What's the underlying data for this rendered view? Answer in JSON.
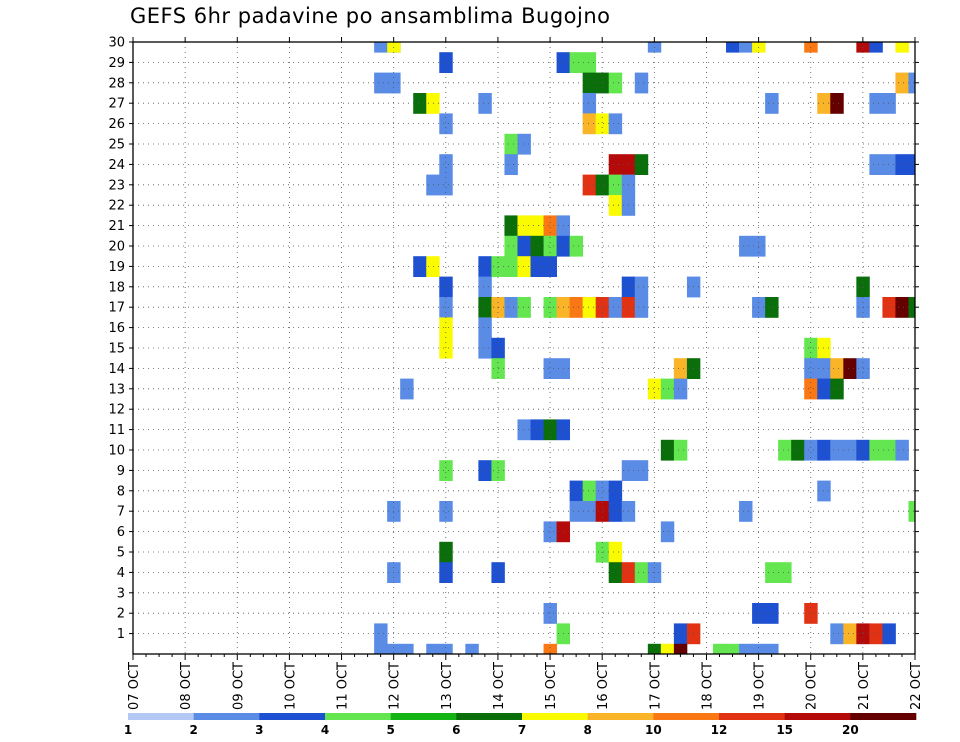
{
  "chart_data": {
    "type": "heatmap",
    "title": "GEFS 6hr padavine po ansamblima Bugojno",
    "xlabel": "",
    "ylabel": "",
    "x_tick_labels": [
      "07 OCT",
      "08 OCT",
      "09 OCT",
      "10 OCT",
      "11 OCT",
      "12 OCT",
      "13 OCT",
      "14 OCT",
      "15 OCT",
      "16 OCT",
      "17 OCT",
      "18 OCT",
      "19 OCT",
      "20 OCT",
      "21 OCT",
      "22 OCT"
    ],
    "y_tick_labels": [
      "1",
      "2",
      "3",
      "4",
      "5",
      "6",
      "7",
      "8",
      "9",
      "10",
      "11",
      "12",
      "13",
      "14",
      "15",
      "16",
      "17",
      "18",
      "19",
      "20",
      "21",
      "22",
      "23",
      "24",
      "25",
      "26",
      "27",
      "28",
      "29",
      "30"
    ],
    "y_range": [
      0,
      30
    ],
    "x_slot": "6-hourly steps starting 07 OCT 00Z (slot 0) to 22 OCT 00Z (slot 60)",
    "grid": true,
    "colorbar": {
      "placement": "bottom",
      "labels": [
        "1",
        "2",
        "3",
        "4",
        "5",
        "6",
        "7",
        "8",
        "10",
        "12",
        "15",
        "20"
      ],
      "colors": [
        "#b4c8f5",
        "#5a8ce6",
        "#1e50d2",
        "#64e650",
        "#14b414",
        "#0a6e0a",
        "#fafa00",
        "#fab428",
        "#fa7814",
        "#e13214",
        "#b40a0a",
        "#640000"
      ]
    },
    "cells": [
      {
        "member": 30,
        "slot": [
          19,
          20,
          20,
          40,
          46,
          47,
          48,
          52,
          56,
          57,
          59
        ],
        "level": [
          1,
          2,
          6,
          1,
          2,
          1,
          6,
          8,
          10,
          2,
          6
        ]
      },
      {
        "member": 29,
        "slot": [
          24,
          33,
          34,
          35
        ],
        "level": [
          2,
          2,
          3,
          3
        ]
      },
      {
        "member": 28,
        "slot": [
          19,
          20,
          35,
          36,
          37,
          39,
          59,
          60
        ],
        "level": [
          1,
          1,
          5,
          5,
          3,
          1,
          7,
          1
        ]
      },
      {
        "member": 27,
        "slot": [
          22,
          23,
          27,
          35,
          49,
          53,
          54,
          57,
          58
        ],
        "level": [
          5,
          6,
          1,
          1,
          1,
          7,
          11,
          1,
          1
        ]
      },
      {
        "member": 26,
        "slot": [
          24,
          35,
          36,
          37
        ],
        "level": [
          1,
          7,
          6,
          1
        ]
      },
      {
        "member": 25,
        "slot": [
          29,
          30
        ],
        "level": [
          3,
          1
        ]
      },
      {
        "member": 24,
        "slot": [
          24,
          29,
          37,
          38,
          39,
          57,
          58,
          59,
          60,
          61,
          62
        ],
        "level": [
          1,
          1,
          10,
          10,
          5,
          1,
          1,
          2,
          2,
          3,
          3
        ]
      },
      {
        "member": 23,
        "slot": [
          23,
          24,
          35,
          36,
          37,
          38
        ],
        "level": [
          1,
          1,
          9,
          5,
          3,
          1
        ]
      },
      {
        "member": 22,
        "slot": [
          37,
          38
        ],
        "level": [
          6,
          1
        ]
      },
      {
        "member": 21,
        "slot": [
          29,
          30,
          31,
          32,
          33
        ],
        "level": [
          5,
          6,
          6,
          8,
          1
        ]
      },
      {
        "member": 20,
        "slot": [
          29,
          30,
          31,
          32,
          33,
          34,
          47,
          48
        ],
        "level": [
          3,
          2,
          5,
          3,
          2,
          3,
          1,
          1
        ]
      },
      {
        "member": 19,
        "slot": [
          22,
          23,
          27,
          28,
          29,
          30,
          31,
          32
        ],
        "level": [
          2,
          6,
          2,
          3,
          3,
          6,
          2,
          2
        ]
      },
      {
        "member": 18,
        "slot": [
          24,
          27,
          38,
          39,
          43,
          56
        ],
        "level": [
          2,
          1,
          2,
          1,
          1,
          5
        ]
      },
      {
        "member": 17,
        "slot": [
          24,
          27,
          28,
          29,
          30,
          32,
          33,
          34,
          35,
          36,
          37,
          38,
          39,
          48,
          49,
          56,
          58,
          59,
          60,
          61,
          62
        ],
        "level": [
          1,
          5,
          7,
          1,
          3,
          3,
          7,
          8,
          6,
          9,
          1,
          9,
          1,
          1,
          5,
          1,
          9,
          11,
          5,
          3,
          9
        ]
      },
      {
        "member": 16,
        "slot": [
          24,
          27
        ],
        "level": [
          6,
          1
        ]
      },
      {
        "member": 15,
        "slot": [
          24,
          27,
          28,
          52,
          53
        ],
        "level": [
          6,
          1,
          2,
          3,
          6
        ]
      },
      {
        "member": 14,
        "slot": [
          28,
          32,
          33,
          42,
          43,
          52,
          53,
          54,
          55,
          56
        ],
        "level": [
          3,
          1,
          1,
          7,
          5,
          1,
          1,
          7,
          11,
          1
        ]
      },
      {
        "member": 13,
        "slot": [
          21,
          40,
          41,
          42,
          52,
          53,
          54
        ],
        "level": [
          1,
          6,
          3,
          1,
          8,
          2,
          5
        ]
      },
      {
        "member": 11,
        "slot": [
          30,
          31,
          32,
          33
        ],
        "level": [
          1,
          2,
          5,
          2
        ]
      },
      {
        "member": 10,
        "slot": [
          41,
          42,
          50,
          51,
          52,
          53,
          54,
          55,
          56,
          57,
          58,
          59
        ],
        "level": [
          5,
          3,
          3,
          5,
          1,
          2,
          1,
          1,
          2,
          3,
          3,
          1
        ]
      },
      {
        "member": 9,
        "slot": [
          24,
          27,
          28,
          38,
          39
        ],
        "level": [
          3,
          2,
          3,
          1,
          1
        ]
      },
      {
        "member": 8,
        "slot": [
          34,
          35,
          36,
          37,
          53
        ],
        "level": [
          2,
          3,
          1,
          2,
          1
        ]
      },
      {
        "member": 7,
        "slot": [
          20,
          24,
          34,
          35,
          36,
          37,
          38,
          47,
          60
        ],
        "level": [
          1,
          1,
          1,
          1,
          10,
          2,
          1,
          1,
          3
        ]
      },
      {
        "member": 6,
        "slot": [
          32,
          33,
          41
        ],
        "level": [
          1,
          10,
          1
        ]
      },
      {
        "member": 5,
        "slot": [
          24,
          36,
          37
        ],
        "level": [
          5,
          3,
          6
        ]
      },
      {
        "member": 4,
        "slot": [
          20,
          24,
          28,
          37,
          38,
          39,
          40,
          49,
          50
        ],
        "level": [
          1,
          2,
          2,
          5,
          9,
          3,
          1,
          3,
          3
        ]
      },
      {
        "member": 2,
        "slot": [
          32,
          48,
          49,
          52
        ],
        "level": [
          1,
          2,
          2,
          9
        ]
      },
      {
        "member": 1,
        "slot": [
          19,
          33,
          42,
          43,
          54,
          55,
          56,
          57,
          58
        ],
        "level": [
          1,
          3,
          2,
          9,
          1,
          7,
          10,
          9,
          2
        ]
      },
      {
        "member": 0,
        "slot": [
          19,
          20,
          21,
          23,
          24,
          26,
          32,
          40,
          41,
          42,
          45,
          46,
          47,
          48,
          49
        ],
        "level": [
          1,
          1,
          1,
          1,
          1,
          1,
          8,
          5,
          6,
          11,
          3,
          3,
          1,
          1,
          1
        ]
      }
    ]
  }
}
